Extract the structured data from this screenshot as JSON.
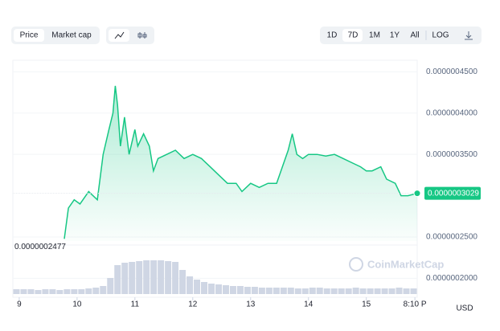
{
  "controls": {
    "tabs": [
      "Price",
      "Market cap"
    ],
    "ranges": [
      "1D",
      "7D",
      "1M",
      "1Y",
      "All",
      "LOG"
    ],
    "currency": "USD",
    "watermark": "CoinMarketCap"
  },
  "chart_data": {
    "type": "line",
    "x": [
      9.78,
      9.85,
      9.95,
      10.05,
      10.2,
      10.35,
      10.45,
      10.55,
      10.62,
      10.66,
      10.7,
      10.75,
      10.82,
      10.9,
      11.0,
      11.05,
      11.15,
      11.25,
      11.32,
      11.4,
      11.55,
      11.7,
      11.85,
      12.0,
      12.15,
      12.3,
      12.45,
      12.6,
      12.75,
      12.85,
      13.0,
      13.15,
      13.3,
      13.45,
      13.55,
      13.65,
      13.72,
      13.8,
      13.9,
      14.0,
      14.15,
      14.3,
      14.45,
      14.6,
      14.75,
      14.9,
      15.0,
      15.1,
      15.25,
      15.35,
      15.5,
      15.6,
      15.72,
      15.88
    ],
    "series": [
      {
        "name": "Price",
        "color": "#16c784",
        "values": [
          2.477e-07,
          2.85e-07,
          2.95e-07,
          2.9e-07,
          3.05e-07,
          2.95e-07,
          3.5e-07,
          3.8e-07,
          4e-07,
          4.33e-07,
          4.1e-07,
          3.6e-07,
          3.95e-07,
          3.5e-07,
          3.8e-07,
          3.6e-07,
          3.75e-07,
          3.6e-07,
          3.3e-07,
          3.45e-07,
          3.5e-07,
          3.55e-07,
          3.45e-07,
          3.5e-07,
          3.45e-07,
          3.35e-07,
          3.25e-07,
          3.15e-07,
          3.15e-07,
          3.05e-07,
          3.15e-07,
          3.1e-07,
          3.15e-07,
          3.15e-07,
          3.35e-07,
          3.55e-07,
          3.75e-07,
          3.5e-07,
          3.45e-07,
          3.5e-07,
          3.5e-07,
          3.48e-07,
          3.5e-07,
          3.45e-07,
          3.4e-07,
          3.35e-07,
          3.3e-07,
          3.3e-07,
          3.35e-07,
          3.2e-07,
          3.15e-07,
          3e-07,
          3e-07,
          3.029e-07
        ],
        "value_labels": [
          "0.0000002477",
          null,
          null,
          null,
          null,
          null,
          null,
          null,
          null,
          null,
          null,
          null,
          null,
          null,
          null,
          null,
          null,
          null,
          null,
          null,
          null,
          null,
          null,
          null,
          null,
          null,
          null,
          null,
          null,
          null,
          null,
          null,
          null,
          null,
          null,
          null,
          null,
          null,
          null,
          null,
          null,
          null,
          null,
          null,
          null,
          null,
          null,
          null,
          null,
          null,
          null,
          null,
          null,
          "0.0000003029"
        ]
      }
    ],
    "volume": {
      "color": "#cfd6e4",
      "values": [
        6,
        6,
        6,
        5,
        6,
        6,
        5,
        6,
        6,
        6,
        7,
        8,
        10,
        20,
        36,
        39,
        40,
        41,
        42,
        42,
        42,
        41,
        40,
        30,
        22,
        18,
        15,
        13,
        12,
        11,
        10,
        10,
        9,
        9,
        8,
        8,
        8,
        8,
        8,
        7,
        7,
        8,
        8,
        7,
        7,
        7,
        7,
        8,
        7,
        7,
        7,
        7,
        7,
        8,
        7,
        7
      ]
    },
    "xlim": [
      8.89,
      15.88
    ],
    "xticks": [
      9,
      10,
      11,
      12,
      13,
      14,
      15,
      {
        "value": 15.84,
        "label": "8:10 P"
      }
    ],
    "ylim": [
      1.77e-07,
      4.64e-07
    ],
    "yticks": [
      {
        "value": 4.5e-07,
        "label": "0.0000004500"
      },
      {
        "value": 4e-07,
        "label": "0.0000004000"
      },
      {
        "value": 3.5e-07,
        "label": "0.0000003500"
      },
      {
        "value": 2.5e-07,
        "label": "0.0000002500"
      },
      {
        "value": 2e-07,
        "label": "0.0000002000"
      }
    ],
    "grid": true
  }
}
